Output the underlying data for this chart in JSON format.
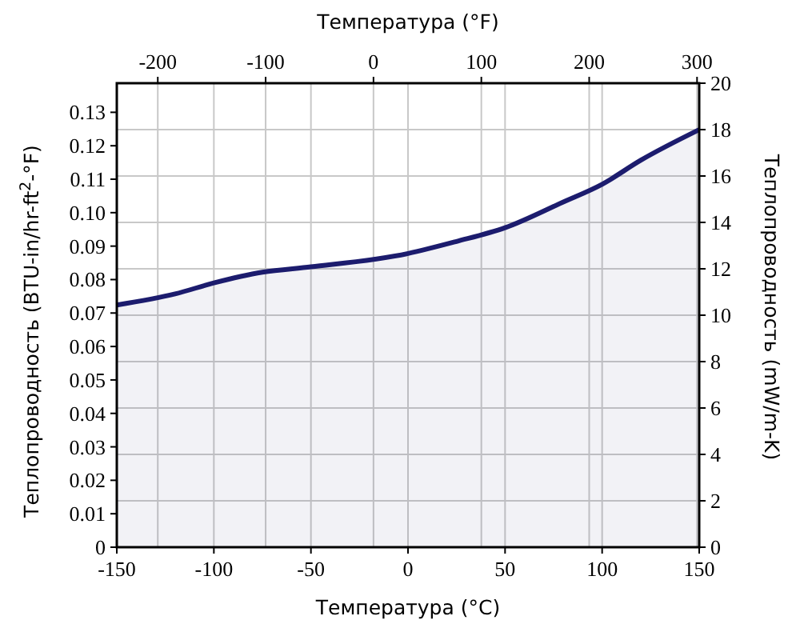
{
  "chart_data": {
    "type": "area",
    "xlabel": "Температура  (°C)",
    "x2label": "Температура  (°F)",
    "ylabel": "Теплопроводность  (BTU-in/hr-ft$^{2}$-°F)",
    "y2label": "Теплопроводность  (mW/m-K)",
    "series": [
      {
        "color": "#1c1c6e",
        "x": [
          -150,
          -120,
          -100,
          -75,
          -50,
          0,
          25,
          50,
          80,
          100,
          120,
          150
        ],
        "values": [
          0.0724,
          0.0757,
          0.079,
          0.0822,
          0.0838,
          0.0878,
          0.0914,
          0.0955,
          0.1032,
          0.1085,
          0.1157,
          0.1248
        ]
      }
    ],
    "xlim": [
      -150,
      150
    ],
    "xticks": [
      -150,
      -100,
      -50,
      0,
      50,
      100,
      150
    ],
    "x2lim": [
      -238,
      302
    ],
    "x2ticks": [
      -200,
      -100,
      0,
      100,
      200,
      300
    ],
    "ylim": [
      0,
      0.1387
    ],
    "yticks": [
      0,
      0.01,
      0.02,
      0.03,
      0.04,
      0.05,
      0.06,
      0.07,
      0.08,
      0.09,
      {
        "value": 0.1,
        "label": "0.10"
      },
      0.11,
      0.12,
      0.13
    ],
    "y2lim": [
      0,
      20
    ],
    "y2ticks": [
      0,
      2,
      4,
      6,
      8,
      10,
      12,
      14,
      16,
      18,
      20
    ],
    "grid": true
  }
}
